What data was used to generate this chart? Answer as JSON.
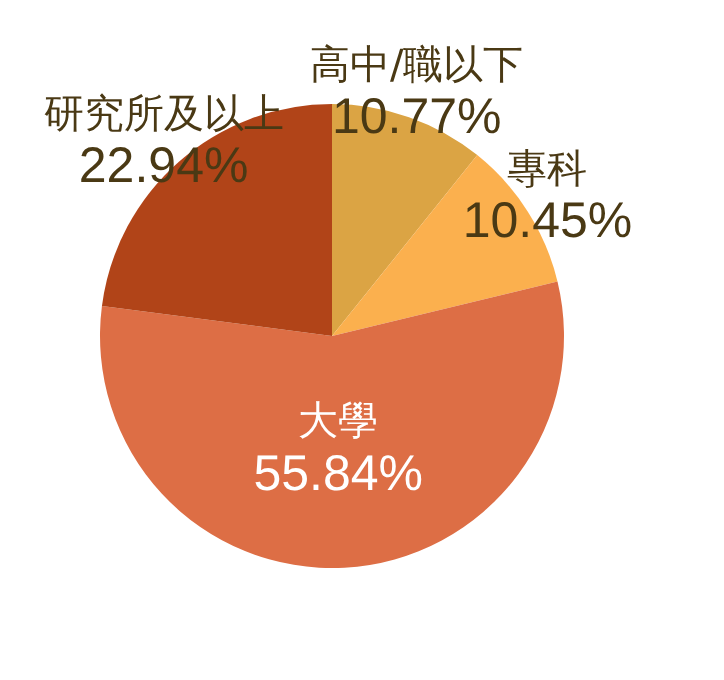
{
  "chart_data": {
    "type": "pie",
    "categories": [
      "高中/職以下",
      "專科",
      "大學",
      "研究所及以上"
    ],
    "values": [
      10.77,
      10.45,
      55.84,
      22.94
    ],
    "colors": [
      "#dba444",
      "#fbb04e",
      "#dd6e45",
      "#b14418"
    ],
    "value_labels": [
      "10.77%",
      "10.45%",
      "55.84%",
      "22.94%"
    ],
    "legend": false
  }
}
